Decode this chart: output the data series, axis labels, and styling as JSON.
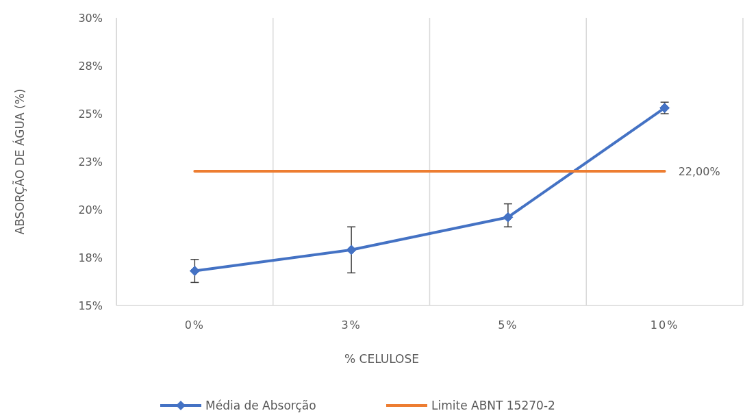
{
  "chart_data": {
    "type": "line",
    "xlabel": "% CELULOSE",
    "ylabel": "ABSORÇÃO DE ÁGUA (%)",
    "categories": [
      "0%",
      "3%",
      "5%",
      "10%"
    ],
    "series": [
      {
        "name": "Média de Absorção",
        "color": "#4472c4",
        "marker": "diamond",
        "values": [
          16.8,
          17.9,
          19.6,
          25.3
        ],
        "errors": [
          [
            16.2,
            17.4
          ],
          [
            16.7,
            19.1
          ],
          [
            19.1,
            20.3
          ],
          [
            25.0,
            25.6
          ]
        ]
      },
      {
        "name": "Limite ABNT 15270-2",
        "color": "#ed7d31",
        "marker": "none",
        "values": [
          22,
          22,
          22,
          22
        ],
        "value_labels": [
          null,
          null,
          null,
          "22,00%"
        ]
      }
    ],
    "ylim": [
      15,
      30
    ],
    "yticks": [
      {
        "value": 15,
        "label": "15%"
      },
      {
        "value": 17.5,
        "label": "18%"
      },
      {
        "value": 20,
        "label": "20%"
      },
      {
        "value": 22.5,
        "label": "23%"
      },
      {
        "value": 25,
        "label": "25%"
      },
      {
        "value": 27.5,
        "label": "28%"
      },
      {
        "value": 30,
        "label": "30%"
      }
    ],
    "grid": "x",
    "legend": "bottom",
    "line_style": "solid"
  }
}
